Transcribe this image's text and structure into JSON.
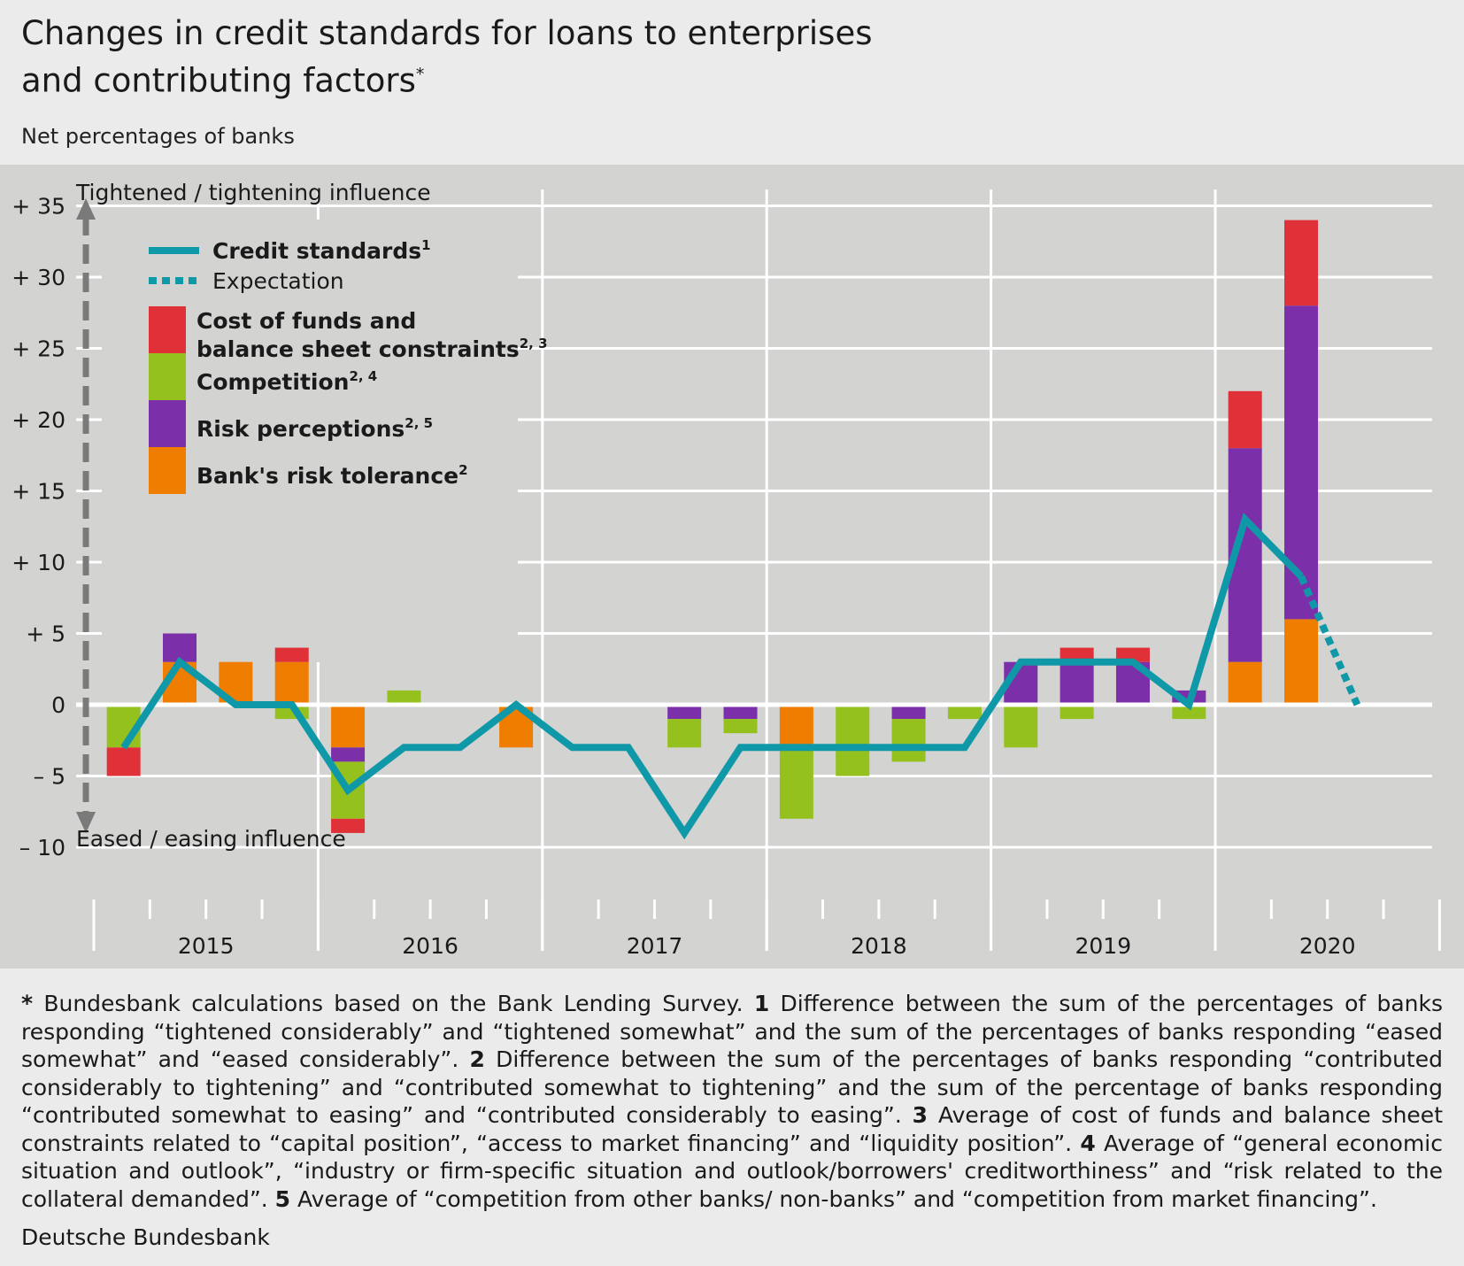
{
  "title": {
    "line1": "Changes in credit standards for loans to enterprises",
    "line2": "and contributing factors",
    "marker": "*"
  },
  "subtitle": "Net percentages of banks",
  "chart_data": {
    "type": "bar",
    "ylim": [
      -10,
      35
    ],
    "yticks": [
      35,
      30,
      25,
      20,
      15,
      10,
      5,
      0,
      -5,
      -10
    ],
    "ytick_labels": [
      "+ 35",
      "+ 30",
      "+ 25",
      "+ 20",
      "+ 15",
      "+ 10",
      "+  5",
      "0",
      "–  5",
      "– 10"
    ],
    "top_annotation": "Tightened / tightening influence",
    "bottom_annotation": "Eased / easing influence",
    "years": [
      "2015",
      "2016",
      "2017",
      "2018",
      "2019",
      "2020"
    ],
    "grid": true,
    "legend_position": "top-left",
    "legend": {
      "line": {
        "label": "Credit standards",
        "note": "1"
      },
      "expectation": {
        "label": "Expectation"
      },
      "cost": {
        "label1": "Cost of funds and",
        "label2": "balance sheet constraints",
        "note": "2, 3"
      },
      "competition": {
        "label": "Competition",
        "note": "2, 4"
      },
      "risk": {
        "label": "Risk perceptions",
        "note": "2, 5"
      },
      "tolerance": {
        "label": "Bank's risk tolerance",
        "note": "2"
      }
    },
    "colors": {
      "cost": "#e03038",
      "competition": "#95c11f",
      "risk": "#7b2fa8",
      "tolerance": "#ef7d00",
      "line": "#0f99a8"
    },
    "stack_order": [
      "tolerance",
      "risk",
      "competition",
      "cost"
    ],
    "quarters": [
      "2015 Q1",
      "2015 Q2",
      "2015 Q3",
      "2015 Q4",
      "2016 Q1",
      "2016 Q2",
      "2016 Q3",
      "2016 Q4",
      "2017 Q1",
      "2017 Q2",
      "2017 Q3",
      "2017 Q4",
      "2018 Q1",
      "2018 Q2",
      "2018 Q3",
      "2018 Q4",
      "2019 Q1",
      "2019 Q2",
      "2019 Q3",
      "2019 Q4",
      "2020 Q1",
      "2020 Q2"
    ],
    "series": [
      {
        "key": "tolerance",
        "name": "Bank's risk tolerance",
        "values": [
          0,
          3,
          3,
          3,
          -3,
          0,
          0,
          -3,
          0,
          0,
          0,
          0,
          -3,
          0,
          0,
          0,
          0,
          0,
          0,
          0,
          3,
          6
        ]
      },
      {
        "key": "risk",
        "name": "Risk perceptions",
        "values": [
          0,
          2,
          0,
          0,
          -1,
          0,
          0,
          0,
          0,
          0,
          -1,
          -1,
          0,
          0,
          -1,
          0,
          3,
          3,
          3,
          1,
          15,
          22
        ]
      },
      {
        "key": "competition",
        "name": "Competition",
        "values": [
          -3,
          0,
          0,
          -1,
          -4,
          1,
          0,
          0,
          0,
          0,
          -2,
          -1,
          -5,
          -5,
          -3,
          -1,
          -3,
          -1,
          0,
          -1,
          0,
          0
        ]
      },
      {
        "key": "cost",
        "name": "Cost of funds and balance sheet constraints",
        "values": [
          -2,
          0,
          0,
          1,
          -1,
          0,
          0,
          0,
          0,
          0,
          0,
          0,
          0,
          0,
          0,
          0,
          0,
          1,
          1,
          0,
          4,
          6
        ]
      }
    ],
    "credit_standards": [
      -3,
      3,
      0,
      0,
      -6,
      -3,
      -3,
      0,
      -3,
      -3,
      -9,
      -3,
      -3,
      -3,
      -3,
      -3,
      3,
      3,
      3,
      0,
      13,
      9
    ],
    "expectation": {
      "x": [
        "2020 Q2",
        "2020 Q3"
      ],
      "values": [
        9,
        0
      ]
    }
  },
  "footnote": {
    "star": "*",
    "p0": " Bundesbank calculations based on the Bank Lending Survey. ",
    "n1": "1",
    "p1": " Difference between the sum of the percentages of banks responding “tightened considerably” and “tightened somewhat” and the sum of the percentages of banks responding “eased somewhat” and “eased considerably”. ",
    "n2": "2",
    "p2": " Difference between the sum of the percentages of banks responding “contributed considerably to tightening” and “contributed somewhat to tightening” and the sum of the percentage of banks responding “contributed somewhat to easing” and “contributed considerably to easing”. ",
    "n3": "3",
    "p3": " Average of cost of funds and balance sheet constraints related to “capital position”, “access to market financing” and “liquidity position”. ",
    "n4": "4",
    "p4": " Average of “general economic situation and outlook”, “industry or firm-specific situation and outlook/borrowers' creditworthiness” and “risk related to the collateral demanded”. ",
    "n5": "5",
    "p5": " Average of “competition from other banks/ non-banks” and “competition from market financing”."
  },
  "source": "Deutsche Bundesbank"
}
